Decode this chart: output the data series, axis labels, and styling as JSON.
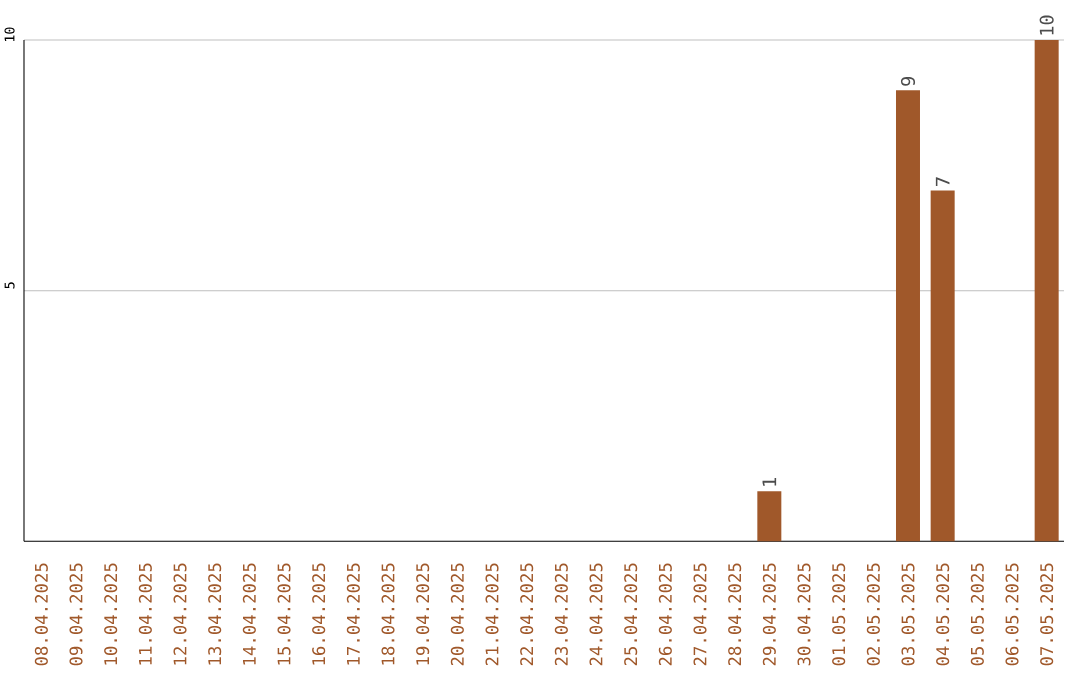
{
  "chart_data": {
    "type": "bar",
    "categories": [
      "08.04.2025",
      "09.04.2025",
      "10.04.2025",
      "11.04.2025",
      "12.04.2025",
      "13.04.2025",
      "14.04.2025",
      "15.04.2025",
      "16.04.2025",
      "17.04.2025",
      "18.04.2025",
      "19.04.2025",
      "20.04.2025",
      "21.04.2025",
      "22.04.2025",
      "23.04.2025",
      "24.04.2025",
      "25.04.2025",
      "26.04.2025",
      "27.04.2025",
      "28.04.2025",
      "29.04.2025",
      "30.04.2025",
      "01.05.2025",
      "02.05.2025",
      "03.05.2025",
      "04.05.2025",
      "05.05.2025",
      "06.05.2025",
      "07.05.2025"
    ],
    "values": [
      0,
      0,
      0,
      0,
      0,
      0,
      0,
      0,
      0,
      0,
      0,
      0,
      0,
      0,
      0,
      0,
      0,
      0,
      0,
      0,
      0,
      1,
      0,
      0,
      0,
      9,
      7,
      0,
      0,
      10
    ],
    "value_labels": [
      null,
      null,
      null,
      null,
      null,
      null,
      null,
      null,
      null,
      null,
      null,
      null,
      null,
      null,
      null,
      null,
      null,
      null,
      null,
      null,
      null,
      "1",
      null,
      null,
      null,
      "9",
      "7",
      null,
      null,
      "10"
    ],
    "color": "#a0582a",
    "ylim": [
      0,
      10
    ],
    "yticks": [
      5,
      10
    ],
    "grid": "y"
  }
}
